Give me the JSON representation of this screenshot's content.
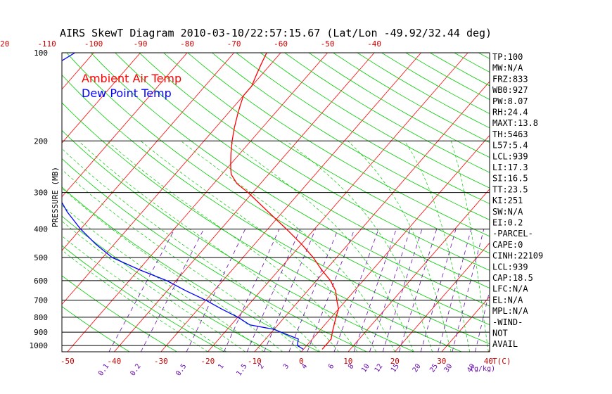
{
  "chart_data": {
    "type": "line",
    "title": "AIRS SkewT Diagram 2010-03-10/22:57:15.67 (Lat/Lon -49.92/32.44 deg)",
    "ylabel": "PRESSURE (MB)",
    "xlabel": "T(C)",
    "mixing_ratio_label": "(g/kg)",
    "y_scale": "log",
    "ylim": [
      1050,
      100
    ],
    "pressure_ticks": [
      100,
      200,
      300,
      400,
      500,
      600,
      700,
      800,
      900,
      1000
    ],
    "pressure_tick_labels": [
      "100",
      "200",
      "300",
      "400",
      "500",
      "600",
      "700",
      "800",
      "900",
      "1000"
    ],
    "temp_ticks_bottom": [
      "-50",
      "-40",
      "-30",
      "-20",
      "-10",
      "0",
      "10",
      "20",
      "30",
      "40"
    ],
    "temp_ticks_top": [
      "-120",
      "-110",
      "-100",
      "-90",
      "-80",
      "-70",
      "-60",
      "-50",
      "-40"
    ],
    "mixing_ratio_ticks": [
      "0.1",
      "0.2",
      "0.5",
      "1",
      "1.5",
      "2",
      "3",
      "4",
      "6",
      "8",
      "10",
      "12",
      "15",
      "20",
      "25",
      "30",
      "40"
    ],
    "legend": [
      {
        "name": "Ambient Air Temp",
        "color": "#ff0000"
      },
      {
        "name": "Dew Point Temp",
        "color": "#0000ff"
      }
    ],
    "series": [
      {
        "name": "Ambient Air Temp",
        "color": "#ff0000",
        "points": [
          {
            "p": 1030,
            "t": 4
          },
          {
            "p": 1000,
            "t": 4
          },
          {
            "p": 950,
            "t": 4
          },
          {
            "p": 900,
            "t": 3
          },
          {
            "p": 850,
            "t": 2
          },
          {
            "p": 800,
            "t": 1
          },
          {
            "p": 750,
            "t": 0
          },
          {
            "p": 700,
            "t": -2
          },
          {
            "p": 650,
            "t": -4
          },
          {
            "p": 600,
            "t": -7
          },
          {
            "p": 550,
            "t": -11
          },
          {
            "p": 500,
            "t": -15
          },
          {
            "p": 450,
            "t": -20
          },
          {
            "p": 400,
            "t": -26
          },
          {
            "p": 350,
            "t": -33
          },
          {
            "p": 300,
            "t": -41
          },
          {
            "p": 280,
            "t": -45
          },
          {
            "p": 260,
            "t": -48
          },
          {
            "p": 250,
            "t": -49
          },
          {
            "p": 240,
            "t": -50
          },
          {
            "p": 220,
            "t": -52
          },
          {
            "p": 200,
            "t": -54
          },
          {
            "p": 180,
            "t": -56
          },
          {
            "p": 160,
            "t": -58
          },
          {
            "p": 150,
            "t": -59
          },
          {
            "p": 140,
            "t": -60
          },
          {
            "p": 130,
            "t": -60
          },
          {
            "p": 120,
            "t": -61
          },
          {
            "p": 110,
            "t": -62
          },
          {
            "p": 100,
            "t": -63
          }
        ]
      },
      {
        "name": "Dew Point Temp",
        "color": "#0000ff",
        "points": [
          {
            "p": 1030,
            "t": 0
          },
          {
            "p": 1000,
            "t": -2
          },
          {
            "p": 950,
            "t": -3
          },
          {
            "p": 900,
            "t": -8
          },
          {
            "p": 880,
            "t": -10
          },
          {
            "p": 850,
            "t": -16
          },
          {
            "p": 800,
            "t": -20
          },
          {
            "p": 750,
            "t": -25
          },
          {
            "p": 700,
            "t": -30
          },
          {
            "p": 650,
            "t": -36
          },
          {
            "p": 600,
            "t": -42
          },
          {
            "p": 550,
            "t": -50
          },
          {
            "p": 500,
            "t": -58
          },
          {
            "p": 450,
            "t": -64
          },
          {
            "p": 400,
            "t": -70
          },
          {
            "p": 350,
            "t": -76
          },
          {
            "p": 300,
            "t": -82
          },
          {
            "p": 250,
            "t": -90
          },
          {
            "p": 220,
            "t": -96
          },
          {
            "p": 200,
            "t": -100
          },
          {
            "p": 180,
            "t": -105
          },
          {
            "p": 160,
            "t": -109
          },
          {
            "p": 150,
            "t": -110
          },
          {
            "p": 140,
            "t": -111
          },
          {
            "p": 130,
            "t": -110
          },
          {
            "p": 120,
            "t": -108
          },
          {
            "p": 110,
            "t": -106
          },
          {
            "p": 100,
            "t": -104
          }
        ]
      }
    ]
  },
  "indices": [
    "TP:100",
    "MW:N/A",
    "FRZ:833",
    "WB0:927",
    "PW:8.07",
    "RH:24.4",
    "MAXT:13.8",
    "TH:5463",
    "L57:5.4",
    "LCL:939",
    "LI:17.3",
    "SI:16.5",
    "TT:23.5",
    "KI:251",
    "SW:N/A",
    "EI:0.2",
    "-PARCEL-",
    "CAPE:0",
    "CINH:22109",
    "LCL:939",
    "CAP:18.5",
    "LFC:N/A",
    "EL:N/A",
    "MPL:N/A",
    "-WIND-",
    "NOT",
    "AVAIL"
  ],
  "colors": {
    "isotherm": "#ff0000",
    "dry_adiabat": "#00cc00",
    "moist_adiabat": "#00cc00",
    "mixing_ratio": "#6a0dad",
    "isobar": "#000000"
  }
}
